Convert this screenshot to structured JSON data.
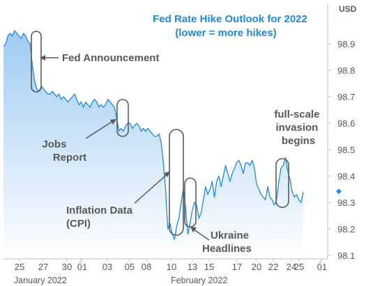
{
  "chart_data": {
    "type": "line",
    "title": "Fed Rate Hike Outlook for 2022",
    "subtitle": "(lower = more hikes)",
    "unit_label": "USD",
    "ylim": [
      98.1,
      98.95
    ],
    "y_ticks": [
      "98.9",
      "98.8",
      "98.7",
      "98.6",
      "98.5",
      "98.4",
      "98.3",
      "98.2",
      "98.1"
    ],
    "x_ticks": [
      "25",
      "27",
      "30",
      "01",
      "03",
      "05",
      "08",
      "10",
      "13",
      "15",
      "17",
      "20",
      "22",
      "24",
      "25",
      "01"
    ],
    "month_labels": [
      "January 2022",
      "February 2022"
    ],
    "grid": false,
    "colors": {
      "line": "#1e88e5",
      "fill_top": "#9ecbf2",
      "fill_bottom": "#ffffff",
      "annotation": "#595959",
      "title": "#1e88e5"
    },
    "series": [
      {
        "values": [
          98.89,
          98.9,
          98.93,
          98.94,
          98.93,
          98.95,
          98.94,
          98.93,
          98.92,
          98.94,
          98.93,
          98.91,
          98.9,
          98.82,
          98.76,
          98.73,
          98.72,
          98.74,
          98.73,
          98.72,
          98.71,
          98.71,
          98.72,
          98.71,
          98.7,
          98.71,
          98.69,
          98.7,
          98.69,
          98.68,
          98.69,
          98.7,
          98.71,
          98.69,
          98.67,
          98.68,
          98.66,
          98.68,
          98.67,
          98.66,
          98.68,
          98.69,
          98.68,
          98.66,
          98.67,
          98.66,
          98.67,
          98.69,
          98.68,
          98.67,
          98.66,
          98.62,
          98.57,
          98.58,
          98.57,
          98.59,
          98.6,
          98.6,
          98.58,
          98.59,
          98.6,
          98.59,
          98.57,
          98.58,
          98.57,
          98.58,
          98.57,
          98.56,
          98.55,
          98.55,
          98.56,
          98.53,
          98.45,
          98.35,
          98.2,
          98.22,
          98.18,
          98.16,
          98.21,
          98.24,
          98.3,
          98.35,
          98.28,
          98.18,
          98.22,
          98.27,
          98.3,
          98.29,
          98.24,
          98.26,
          98.31,
          98.36,
          98.33,
          98.35,
          98.38,
          98.32,
          98.38,
          98.4,
          98.36,
          98.4,
          98.44,
          98.41,
          98.38,
          98.41,
          98.43,
          98.45,
          98.46,
          98.44,
          98.41,
          98.45,
          98.45,
          98.44,
          98.46,
          98.43,
          98.37,
          98.35,
          98.33,
          98.32,
          98.31,
          98.36,
          98.32,
          98.31,
          98.29,
          98.31,
          98.38,
          98.43,
          98.44,
          98.47,
          98.42,
          98.39,
          98.34,
          98.32,
          98.33,
          98.31,
          98.3,
          98.34
        ]
      }
    ],
    "annotations": [
      "Fed Announcement",
      "Jobs Report",
      "Inflation Data (CPI)",
      "Ukraine Headlines",
      "full-scale invasion begins"
    ]
  }
}
